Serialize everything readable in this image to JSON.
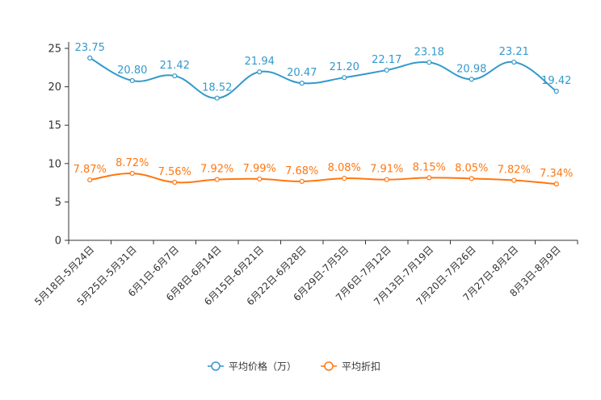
{
  "chart_data": {
    "type": "line",
    "title": "",
    "xlabel": "",
    "ylabel": "",
    "ylim": [
      0,
      25
    ],
    "yticks": [
      0,
      5,
      10,
      15,
      20,
      25
    ],
    "grid": false,
    "legend_position": "bottom-center",
    "categories": [
      "5月18日-5月24日",
      "5月25日-5月31日",
      "6月1日-6月7日",
      "6月8日-6月14日",
      "6月15日-6月21日",
      "6月22日-6月28日",
      "6月29日-7月5日",
      "7月6日-7月12日",
      "7月13日-7月19日",
      "7月20日-7月26日",
      "7月27日-8月2日",
      "8月3日-8月9日"
    ],
    "series": [
      {
        "name": "平均价格（万）",
        "color": "#3399cc",
        "values": [
          23.75,
          20.8,
          21.42,
          18.52,
          21.94,
          20.47,
          21.2,
          22.17,
          23.18,
          20.98,
          23.21,
          19.42
        ],
        "labels": [
          "23.75",
          "20.80",
          "21.42",
          "18.52",
          "21.94",
          "20.47",
          "21.20",
          "22.17",
          "23.18",
          "20.98",
          "23.21",
          "19.42"
        ]
      },
      {
        "name": "平均折扣",
        "color": "#ff7711",
        "values": [
          7.87,
          8.72,
          7.56,
          7.92,
          7.99,
          7.68,
          8.08,
          7.91,
          8.15,
          8.05,
          7.82,
          7.34
        ],
        "labels": [
          "7.87%",
          "8.72%",
          "7.56%",
          "7.92%",
          "7.99%",
          "7.68%",
          "8.08%",
          "7.91%",
          "8.15%",
          "8.05%",
          "7.82%",
          "7.34%"
        ]
      }
    ]
  }
}
